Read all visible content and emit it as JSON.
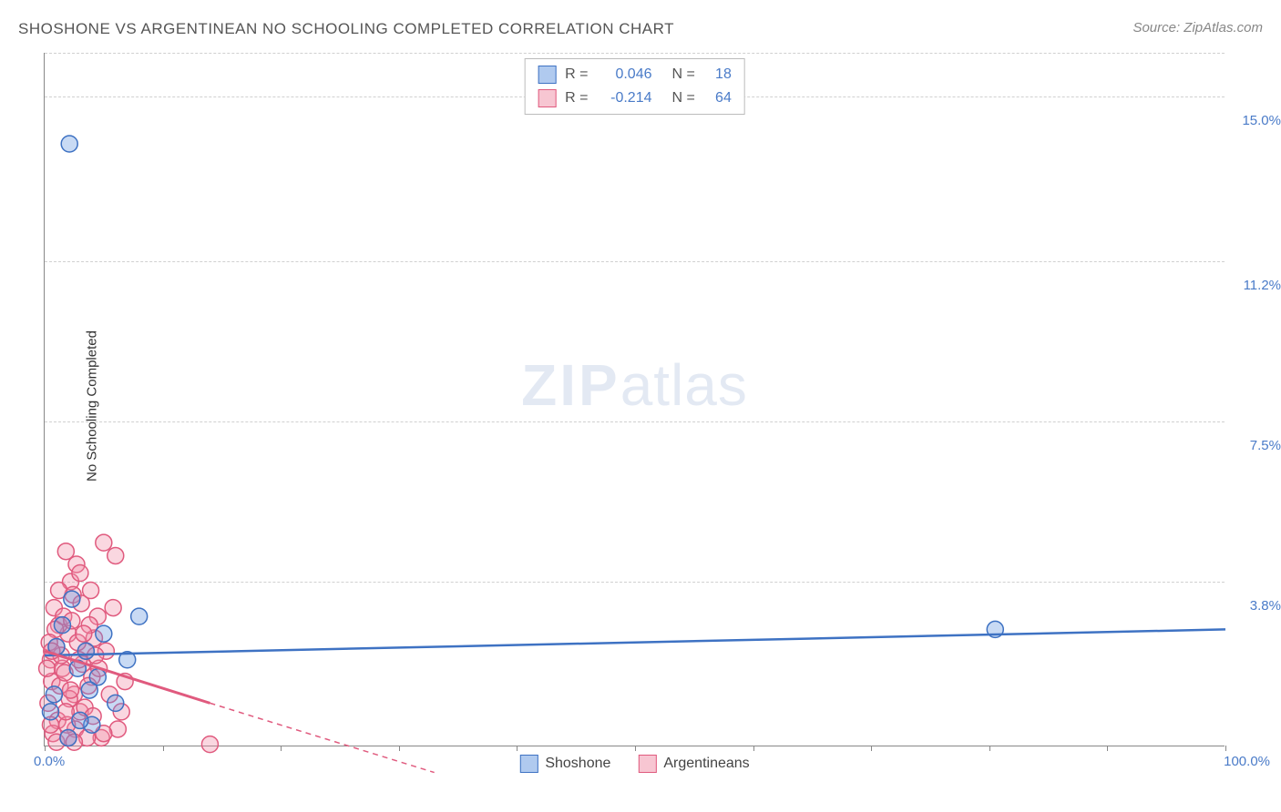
{
  "title": "SHOSHONE VS ARGENTINEAN NO SCHOOLING COMPLETED CORRELATION CHART",
  "source": "Source: ZipAtlas.com",
  "watermark_strong": "ZIP",
  "watermark_light": "atlas",
  "y_axis_title": "No Schooling Completed",
  "chart": {
    "type": "scatter",
    "xlim": [
      0,
      100
    ],
    "ylim": [
      0,
      16
    ],
    "x_start_label": "0.0%",
    "x_end_label": "100.0%",
    "y_tick_labels": [
      "3.8%",
      "7.5%",
      "11.2%",
      "15.0%"
    ],
    "y_tick_values": [
      3.8,
      7.5,
      11.2,
      15.0
    ],
    "x_tick_step": 10,
    "text_color": "#4a7bc8",
    "plot_bg": "#ffffff",
    "grid_color": "#d0d0d0",
    "axis_color": "#888888",
    "marker_radius": 9,
    "marker_stroke_width": 1.5,
    "marker_fill_opacity": 0.35,
    "series": [
      {
        "name": "Shoshone",
        "color": "#6196e0",
        "stroke": "#3e72c3",
        "r_value": "0.046",
        "n_value": "18",
        "trend": {
          "x1": 0,
          "y1": 2.1,
          "x2": 100,
          "y2": 2.7,
          "dash": null,
          "width": 2.5
        },
        "points": [
          [
            2.1,
            13.9
          ],
          [
            80.5,
            2.7
          ],
          [
            2.0,
            0.2
          ],
          [
            4.0,
            0.5
          ],
          [
            0.8,
            1.2
          ],
          [
            3.5,
            2.2
          ],
          [
            8.0,
            3.0
          ],
          [
            5.0,
            2.6
          ],
          [
            1.0,
            2.3
          ],
          [
            2.8,
            1.8
          ],
          [
            6.0,
            1.0
          ],
          [
            3.0,
            0.6
          ],
          [
            4.5,
            1.6
          ],
          [
            1.5,
            2.8
          ],
          [
            0.5,
            0.8
          ],
          [
            2.3,
            3.4
          ],
          [
            7.0,
            2.0
          ],
          [
            3.8,
            1.3
          ]
        ]
      },
      {
        "name": "Argentineans",
        "color": "#f08da5",
        "stroke": "#e05a7e",
        "r_value": "-0.214",
        "n_value": "64",
        "trend": {
          "x1": 0,
          "y1": 2.2,
          "x2": 14,
          "y2": 1.0,
          "dash": null,
          "width": 3
        },
        "trend_ext": {
          "x1": 14,
          "y1": 1.0,
          "x2": 33,
          "y2": -0.6,
          "dash": "6 5",
          "width": 1.5
        },
        "points": [
          [
            14.0,
            0.05
          ],
          [
            0.5,
            2.0
          ],
          [
            1.0,
            2.3
          ],
          [
            1.5,
            1.8
          ],
          [
            2.0,
            2.6
          ],
          [
            2.5,
            1.2
          ],
          [
            3.0,
            0.8
          ],
          [
            0.8,
            3.2
          ],
          [
            1.2,
            2.8
          ],
          [
            3.5,
            2.2
          ],
          [
            4.0,
            1.6
          ],
          [
            1.8,
            4.5
          ],
          [
            2.2,
            3.8
          ],
          [
            5.0,
            4.7
          ],
          [
            6.0,
            4.4
          ],
          [
            0.3,
            1.0
          ],
          [
            0.6,
            1.5
          ],
          [
            1.1,
            0.6
          ],
          [
            4.5,
            3.0
          ],
          [
            2.8,
            2.4
          ],
          [
            3.2,
            1.9
          ],
          [
            5.5,
            1.2
          ],
          [
            6.5,
            0.8
          ],
          [
            1.4,
            2.1
          ],
          [
            0.9,
            2.7
          ],
          [
            2.6,
            0.4
          ],
          [
            3.4,
            0.9
          ],
          [
            4.2,
            2.5
          ],
          [
            1.6,
            3.0
          ],
          [
            0.4,
            2.4
          ],
          [
            2.1,
            1.1
          ],
          [
            3.8,
            2.8
          ],
          [
            1.3,
            1.4
          ],
          [
            0.7,
            0.3
          ],
          [
            2.4,
            3.5
          ],
          [
            5.2,
            2.2
          ],
          [
            1.9,
            0.5
          ],
          [
            4.8,
            0.2
          ],
          [
            6.2,
            0.4
          ],
          [
            2.9,
            2.0
          ],
          [
            3.6,
            0.2
          ],
          [
            1.7,
            1.7
          ],
          [
            0.2,
            1.8
          ],
          [
            2.7,
            4.2
          ],
          [
            3.1,
            3.3
          ],
          [
            4.6,
            1.8
          ],
          [
            5.8,
            3.2
          ],
          [
            1.0,
            0.1
          ],
          [
            2.3,
            2.9
          ],
          [
            3.9,
            3.6
          ],
          [
            0.5,
            0.5
          ],
          [
            4.1,
            0.7
          ],
          [
            2.0,
            0.2
          ],
          [
            3.3,
            2.6
          ],
          [
            1.2,
            3.6
          ],
          [
            5.0,
            0.3
          ],
          [
            6.8,
            1.5
          ],
          [
            2.5,
            0.1
          ],
          [
            3.7,
            1.4
          ],
          [
            4.3,
            2.1
          ],
          [
            1.8,
            0.8
          ],
          [
            0.6,
            2.2
          ],
          [
            2.2,
            1.3
          ],
          [
            3.0,
            4.0
          ]
        ]
      }
    ]
  },
  "legend_top": {
    "r_label": "R =",
    "n_label": "N ="
  },
  "legend_bottom": {
    "items": [
      "Shoshone",
      "Argentineans"
    ]
  }
}
